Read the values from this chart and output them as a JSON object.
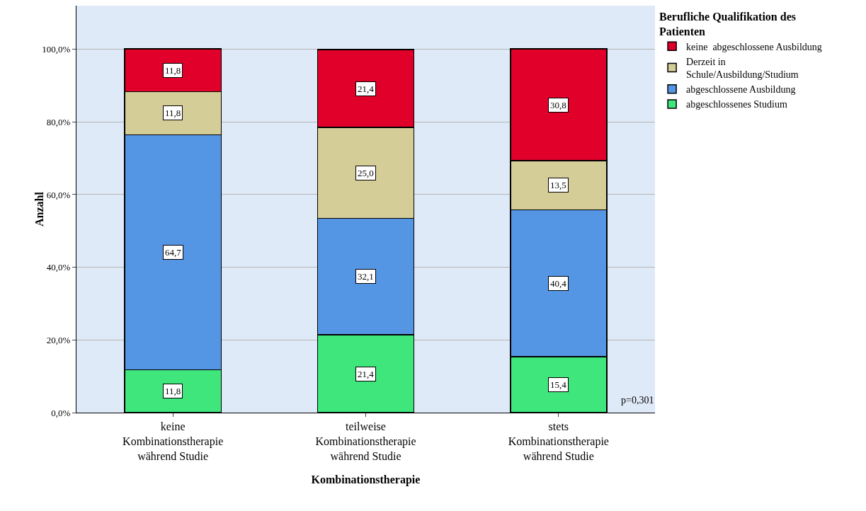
{
  "chart_data": {
    "type": "bar",
    "stacked": true,
    "xlabel": "Kombinationstherapie",
    "ylabel": "Anzahl",
    "legend_title": "Berufliche Qualifikation des\nPatienten",
    "legend": "right",
    "categories": [
      "keine\nKombinationstherapie\nwährend Studie",
      "teilweise\nKombinationstherapie\nwährend Studie",
      "stets\nKombinationstherapie\nwährend Studie"
    ],
    "series": [
      {
        "name": "abgeschlossenes Studium",
        "color": "#3fe67c",
        "values": [
          11.8,
          21.4,
          15.4
        ],
        "value_labels": [
          "11,8",
          "21,4",
          "15,4"
        ]
      },
      {
        "name": "abgeschlossene Ausbildung",
        "color": "#5596e4",
        "values": [
          64.7,
          32.1,
          40.4
        ],
        "value_labels": [
          "64,7",
          "32,1",
          "40,4"
        ]
      },
      {
        "name": "Derzeit in\nSchule/Ausbildung/Studium",
        "color": "#d4cd97",
        "values": [
          11.8,
          25.0,
          13.5
        ],
        "value_labels": [
          "11,8",
          "25,0",
          "13,5"
        ]
      },
      {
        "name": "keine  abgeschlossene Ausbildung",
        "color": "#e0002a",
        "values": [
          11.8,
          21.4,
          30.8
        ],
        "value_labels": [
          "11,8",
          "21,4",
          "30,8"
        ]
      }
    ],
    "ylim": [
      0,
      112
    ],
    "yticks": [
      {
        "value": 0,
        "label": "0,0%"
      },
      {
        "value": 20,
        "label": "20,0%"
      },
      {
        "value": 40,
        "label": "40,0%"
      },
      {
        "value": 60,
        "label": "60,0%"
      },
      {
        "value": 80,
        "label": "80,0%"
      },
      {
        "value": 100,
        "label": "100,0%"
      }
    ],
    "grid": "y",
    "annotations": [
      "p=0,301"
    ]
  }
}
